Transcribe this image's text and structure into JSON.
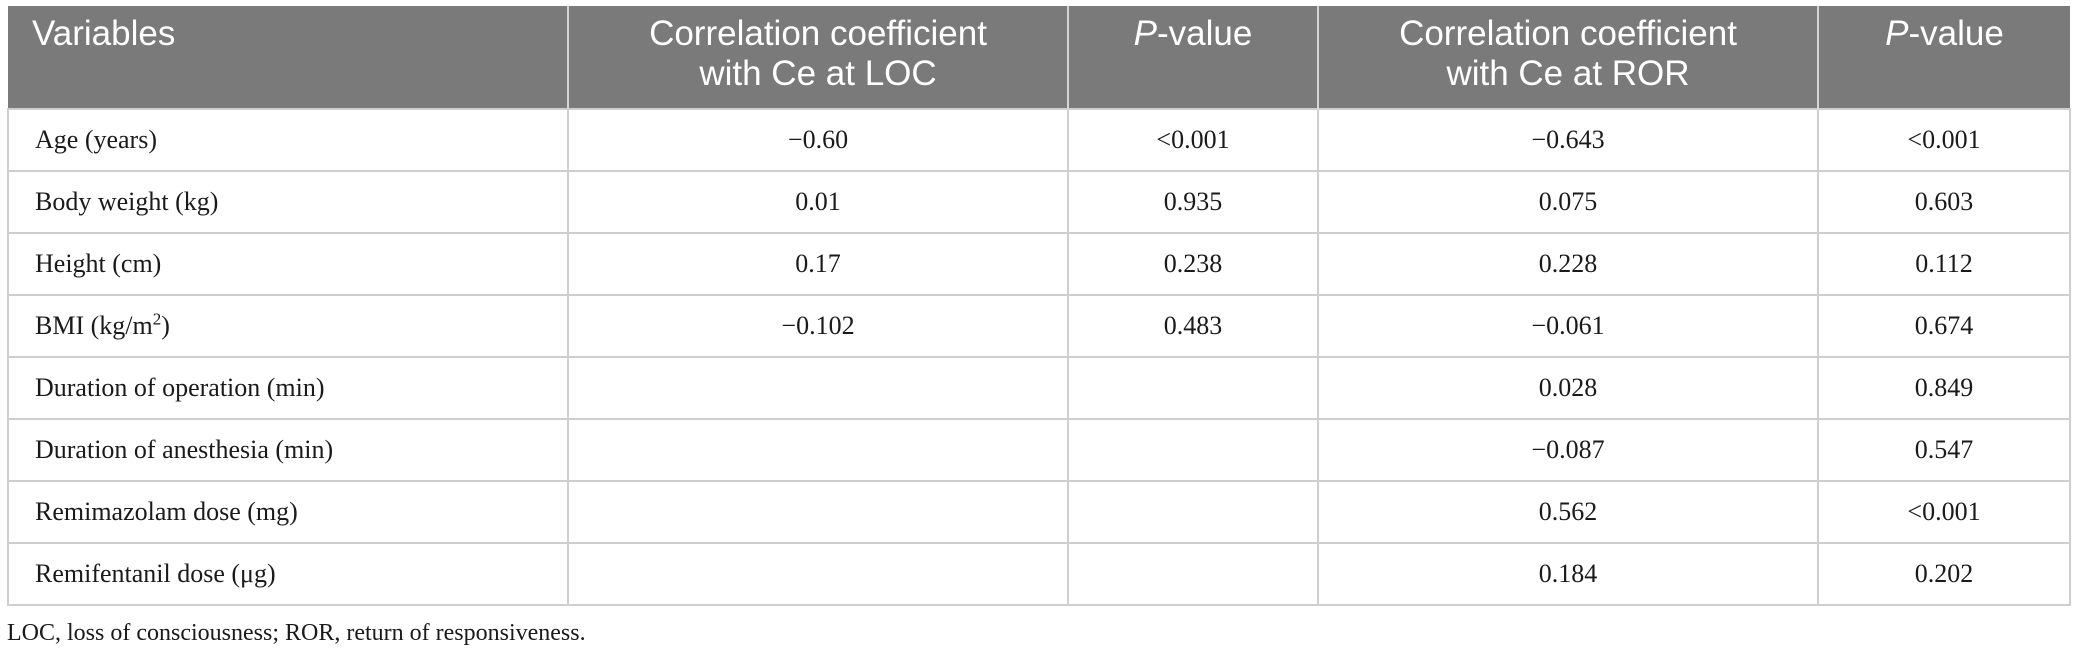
{
  "table": {
    "headers": {
      "variables": "Variables",
      "corr_loc_line1": "Correlation coefficient",
      "corr_loc_line2": "with Ce at LOC",
      "p1_italic": "P",
      "p1_rest": "-value",
      "corr_ror_line1": "Correlation coefficient",
      "corr_ror_line2": "with Ce at ROR",
      "p2_italic": "P",
      "p2_rest": "-value"
    },
    "rows": [
      {
        "variable": "Age (years)",
        "corr_loc": "−0.60",
        "p_loc": "<0.001",
        "corr_ror": "−0.643",
        "p_ror": "<0.001"
      },
      {
        "variable": "Body weight (kg)",
        "corr_loc": "0.01",
        "p_loc": "0.935",
        "corr_ror": "0.075",
        "p_ror": "0.603"
      },
      {
        "variable": "Height (cm)",
        "corr_loc": "0.17",
        "p_loc": "0.238",
        "corr_ror": "0.228",
        "p_ror": "0.112"
      },
      {
        "variable": "BMI (kg/m",
        "variable_sup": "2",
        "variable_tail": ")",
        "corr_loc": "−0.102",
        "p_loc": "0.483",
        "corr_ror": "−0.061",
        "p_ror": "0.674"
      },
      {
        "variable": "Duration of operation (min)",
        "corr_loc": "",
        "p_loc": "",
        "corr_ror": "0.028",
        "p_ror": "0.849"
      },
      {
        "variable": "Duration of anesthesia (min)",
        "corr_loc": "",
        "p_loc": "",
        "corr_ror": "−0.087",
        "p_ror": "0.547"
      },
      {
        "variable": "Remimazolam dose (mg)",
        "corr_loc": "",
        "p_loc": "",
        "corr_ror": "0.562",
        "p_ror": "<0.001"
      },
      {
        "variable": "Remifentanil dose (μg)",
        "corr_loc": "",
        "p_loc": "",
        "corr_ror": "0.184",
        "p_ror": "0.202"
      }
    ]
  },
  "footnote": "LOC, loss of consciousness; ROR, return of responsiveness."
}
